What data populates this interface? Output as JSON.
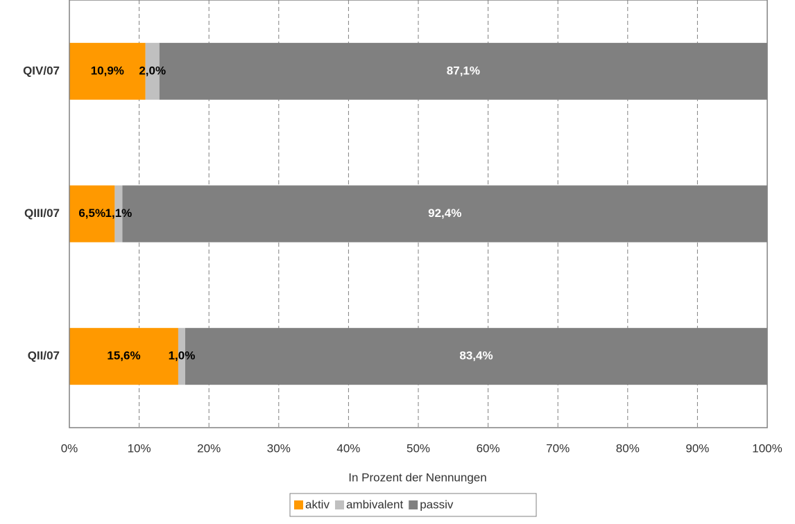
{
  "chart_data": {
    "type": "stacked-bar-horizontal",
    "categories": [
      "QIV/07",
      "QIII/07",
      "QII/07"
    ],
    "series": [
      {
        "name": "aktiv",
        "color": "#ff9900",
        "label_color": "#000000",
        "values": [
          10.9,
          6.5,
          15.6
        ],
        "value_labels": [
          "10,9%",
          "6,5%",
          "15,6%"
        ]
      },
      {
        "name": "ambivalent",
        "color": "#c0c0c0",
        "label_color": "#000000",
        "values": [
          2.0,
          1.1,
          1.0
        ],
        "value_labels": [
          "2,0%",
          "1,1%",
          "1,0%"
        ]
      },
      {
        "name": "passiv",
        "color": "#808080",
        "label_color": "#ffffff",
        "values": [
          87.1,
          92.4,
          83.4
        ],
        "value_labels": [
          "87,1%",
          "92,4%",
          "83,4%"
        ]
      }
    ],
    "xlabel": "In Prozent der Nennungen",
    "xlim": [
      0,
      100
    ],
    "xticks": [
      {
        "value": 0,
        "label": "0%"
      },
      {
        "value": 10,
        "label": "10%"
      },
      {
        "value": 20,
        "label": "20%"
      },
      {
        "value": 30,
        "label": "30%"
      },
      {
        "value": 40,
        "label": "40%"
      },
      {
        "value": 50,
        "label": "50%"
      },
      {
        "value": 60,
        "label": "60%"
      },
      {
        "value": 70,
        "label": "70%"
      },
      {
        "value": 80,
        "label": "80%"
      },
      {
        "value": 90,
        "label": "90%"
      },
      {
        "value": 100,
        "label": "100%"
      }
    ],
    "grid": true,
    "legend": "bottom"
  }
}
